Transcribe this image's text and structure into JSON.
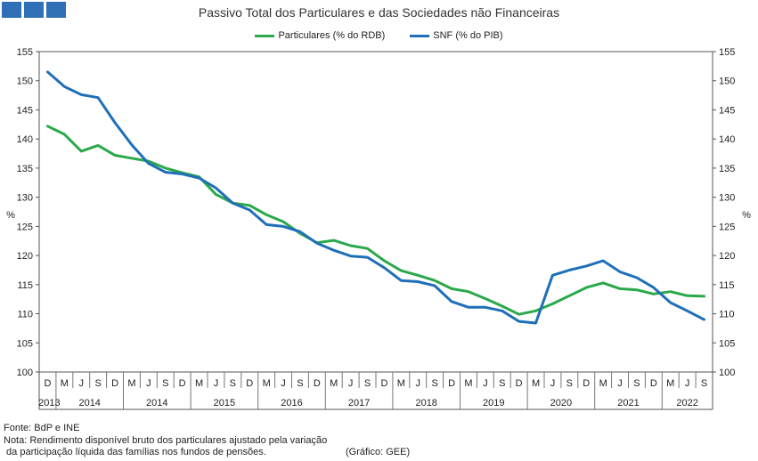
{
  "header": {
    "title": "Passivo Total dos Particulares e das Sociedades não Financeiras"
  },
  "legend": [
    {
      "label": "Particulares (% do RDB)",
      "color": "#2aa84a"
    },
    {
      "label": "SNF (% do PIB)",
      "color": "#1f6fb8"
    }
  ],
  "footer": {
    "source": "Fonte: BdP e INE",
    "note_line1": "Nota: Rendimento disponível bruto dos particulares ajustado pela variação",
    "note_line2": " da participação líquida das famílias nos fundos de pensões.",
    "credit": "(Gráfico: GEE)"
  },
  "chart_data": {
    "type": "line",
    "title": "Passivo Total dos Particulares e das Sociedades não Financeiras",
    "ylabel_left": "%",
    "ylabel_right": "%",
    "ylim": [
      100,
      155
    ],
    "yticks": [
      100,
      105,
      110,
      115,
      120,
      125,
      130,
      135,
      140,
      145,
      150,
      155
    ],
    "grid": false,
    "legend_position": "top-center",
    "categories": [
      "D",
      "M",
      "J",
      "S",
      "D",
      "M",
      "J",
      "S",
      "D",
      "M",
      "J",
      "S",
      "D",
      "M",
      "J",
      "S",
      "D",
      "M",
      "J",
      "S",
      "D",
      "M",
      "J",
      "S",
      "D",
      "M",
      "J",
      "S",
      "D",
      "M",
      "J",
      "S",
      "D",
      "M",
      "J",
      "S",
      "D",
      "M",
      "J",
      "S"
    ],
    "years": [
      {
        "label": "2013",
        "start": 0,
        "end": 0
      },
      {
        "label": "2014",
        "start": 1,
        "end": 4
      },
      {
        "label": "2014",
        "start": 5,
        "end": 8
      },
      {
        "label": "2015",
        "start": 9,
        "end": 12
      },
      {
        "label": "2016",
        "start": 13,
        "end": 16
      },
      {
        "label": "2017",
        "start": 17,
        "end": 20
      },
      {
        "label": "2018",
        "start": 21,
        "end": 24
      },
      {
        "label": "2019",
        "start": 25,
        "end": 28
      },
      {
        "label": "2020",
        "start": 29,
        "end": 32
      },
      {
        "label": "2021",
        "start": 33,
        "end": 36
      },
      {
        "label": "2022",
        "start": 37,
        "end": 39
      }
    ],
    "series": [
      {
        "name": "Particulares (% do RDB)",
        "color": "#2aa84a",
        "values": [
          142.2,
          140.8,
          137.9,
          138.9,
          137.2,
          136.7,
          136.2,
          135.0,
          134.2,
          133.5,
          130.5,
          129.0,
          128.6,
          127.0,
          125.8,
          123.8,
          122.2,
          122.6,
          121.7,
          121.2,
          119.1,
          117.4,
          116.6,
          115.7,
          114.3,
          113.8,
          112.6,
          111.3,
          109.9,
          110.5,
          111.7,
          113.1,
          114.5,
          115.3,
          114.3,
          114.1,
          113.4,
          113.8,
          113.1,
          113.0
        ]
      },
      {
        "name": "SNF (% do PIB)",
        "color": "#1f6fb8",
        "values": [
          151.5,
          149.0,
          147.6,
          147.1,
          142.8,
          139.0,
          135.8,
          134.3,
          134.0,
          133.3,
          131.6,
          129.0,
          127.8,
          125.3,
          125.0,
          124.1,
          122.1,
          120.9,
          119.9,
          119.7,
          117.9,
          115.7,
          115.5,
          114.8,
          112.1,
          111.1,
          111.1,
          110.5,
          108.7,
          108.4,
          116.6,
          117.5,
          118.2,
          119.1,
          117.2,
          116.2,
          114.5,
          111.9,
          110.5,
          109.0
        ]
      }
    ]
  }
}
